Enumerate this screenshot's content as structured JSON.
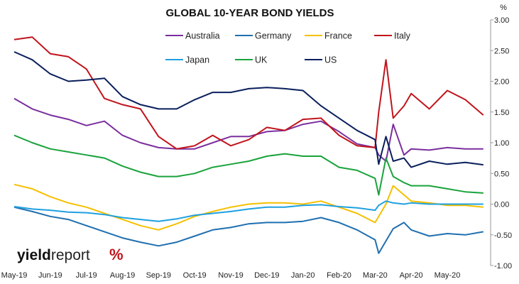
{
  "chart_data": {
    "type": "line",
    "title": "GLOBAL 10-YEAR BOND YIELDS",
    "y_unit": "%",
    "ylim": [
      -1.0,
      3.0
    ],
    "y_ticks": [
      "3.00",
      "2.50",
      "2.00",
      "1.50",
      "1.00",
      "0.50",
      "0.00",
      "-0.50",
      "-1.00"
    ],
    "y_tick_values": [
      3.0,
      2.5,
      2.0,
      1.5,
      1.0,
      0.5,
      0.0,
      -0.5,
      -1.0
    ],
    "x_tick_labels": [
      "May-19",
      "Jun-19",
      "Jul-19",
      "Aug-19",
      "Sep-19",
      "Oct-19",
      "Nov-19",
      "Dec-19",
      "Jan-20",
      "Feb-20",
      "Mar-20",
      "Apr-20",
      "May-20"
    ],
    "x_range_months": [
      0,
      13.2
    ],
    "grid": false,
    "legend_placement": "top, inside plot",
    "series": [
      {
        "name": "Australia",
        "color": "#7B2F9E",
        "x": [
          0,
          0.5,
          1,
          1.5,
          2,
          2.5,
          3,
          3.5,
          4,
          4.5,
          5,
          5.5,
          6,
          6.5,
          7,
          7.5,
          8,
          8.5,
          9,
          9.5,
          10,
          10.1,
          10.3,
          10.5,
          10.8,
          11,
          11.5,
          12,
          12.5,
          13
        ],
        "y": [
          1.72,
          1.55,
          1.45,
          1.38,
          1.28,
          1.35,
          1.12,
          1.0,
          0.92,
          0.9,
          0.9,
          1.0,
          1.1,
          1.1,
          1.18,
          1.2,
          1.3,
          1.35,
          1.18,
          0.98,
          0.92,
          0.8,
          0.7,
          1.3,
          0.8,
          0.9,
          0.88,
          0.92,
          0.9,
          0.9
        ]
      },
      {
        "name": "Germany",
        "color": "#1F6FB0",
        "x": [
          0,
          0.5,
          1,
          1.5,
          2,
          2.5,
          3,
          3.5,
          4,
          4.5,
          5,
          5.5,
          6,
          6.5,
          7,
          7.5,
          8,
          8.5,
          9,
          9.5,
          10,
          10.1,
          10.3,
          10.5,
          10.8,
          11,
          11.5,
          12,
          12.5,
          13
        ],
        "y": [
          -0.05,
          -0.12,
          -0.2,
          -0.25,
          -0.35,
          -0.45,
          -0.55,
          -0.62,
          -0.68,
          -0.62,
          -0.52,
          -0.42,
          -0.38,
          -0.32,
          -0.3,
          -0.3,
          -0.28,
          -0.22,
          -0.3,
          -0.42,
          -0.58,
          -0.8,
          -0.6,
          -0.4,
          -0.3,
          -0.42,
          -0.52,
          -0.48,
          -0.5,
          -0.45
        ]
      },
      {
        "name": "France",
        "color": "#F5C000",
        "x": [
          0,
          0.5,
          1,
          1.5,
          2,
          2.5,
          3,
          3.5,
          4,
          4.5,
          5,
          5.5,
          6,
          6.5,
          7,
          7.5,
          8,
          8.5,
          9,
          9.5,
          10,
          10.1,
          10.3,
          10.5,
          10.8,
          11,
          11.5,
          12,
          12.5,
          13
        ],
        "y": [
          0.32,
          0.25,
          0.12,
          0.02,
          -0.05,
          -0.15,
          -0.25,
          -0.35,
          -0.42,
          -0.32,
          -0.2,
          -0.12,
          -0.05,
          0.0,
          0.02,
          0.02,
          0.0,
          0.05,
          -0.05,
          -0.15,
          -0.3,
          -0.2,
          0.0,
          0.3,
          0.15,
          0.05,
          0.02,
          -0.02,
          -0.02,
          -0.05
        ]
      },
      {
        "name": "Italy",
        "color": "#C0141C",
        "x": [
          0,
          0.5,
          1,
          1.5,
          2,
          2.5,
          3,
          3.5,
          4,
          4.5,
          5,
          5.5,
          6,
          6.5,
          7,
          7.5,
          8,
          8.5,
          9,
          9.5,
          10,
          10.1,
          10.3,
          10.5,
          10.8,
          11,
          11.5,
          12,
          12.5,
          13
        ],
        "y": [
          2.68,
          2.72,
          2.45,
          2.4,
          2.2,
          1.72,
          1.62,
          1.55,
          1.1,
          0.9,
          0.95,
          1.12,
          0.95,
          1.05,
          1.25,
          1.2,
          1.38,
          1.4,
          1.12,
          0.95,
          0.92,
          1.5,
          2.35,
          1.4,
          1.6,
          1.8,
          1.55,
          1.85,
          1.7,
          1.45
        ]
      },
      {
        "name": "Japan",
        "color": "#1FA0E0",
        "x": [
          0,
          0.5,
          1,
          1.5,
          2,
          2.5,
          3,
          3.5,
          4,
          4.5,
          5,
          5.5,
          6,
          6.5,
          7,
          7.5,
          8,
          8.5,
          9,
          9.5,
          10,
          10.1,
          10.3,
          10.5,
          10.8,
          11,
          11.5,
          12,
          12.5,
          13
        ],
        "y": [
          -0.04,
          -0.08,
          -0.1,
          -0.13,
          -0.14,
          -0.17,
          -0.22,
          -0.25,
          -0.28,
          -0.24,
          -0.18,
          -0.15,
          -0.12,
          -0.08,
          -0.05,
          -0.05,
          -0.02,
          -0.01,
          -0.04,
          -0.06,
          -0.1,
          -0.02,
          0.05,
          0.02,
          0.0,
          0.02,
          0.0,
          0.0,
          0.0,
          0.0
        ]
      },
      {
        "name": "UK",
        "color": "#1AA33C",
        "x": [
          0,
          0.5,
          1,
          1.5,
          2,
          2.5,
          3,
          3.5,
          4,
          4.5,
          5,
          5.5,
          6,
          6.5,
          7,
          7.5,
          8,
          8.5,
          9,
          9.5,
          10,
          10.1,
          10.3,
          10.5,
          10.8,
          11,
          11.5,
          12,
          12.5,
          13
        ],
        "y": [
          1.12,
          1.0,
          0.9,
          0.85,
          0.8,
          0.75,
          0.62,
          0.52,
          0.45,
          0.45,
          0.5,
          0.6,
          0.65,
          0.7,
          0.78,
          0.82,
          0.78,
          0.78,
          0.6,
          0.55,
          0.42,
          0.15,
          0.75,
          0.45,
          0.35,
          0.3,
          0.3,
          0.25,
          0.2,
          0.18
        ]
      },
      {
        "name": "US",
        "color": "#0A1F5C",
        "x": [
          0,
          0.5,
          1,
          1.5,
          2,
          2.5,
          3,
          3.5,
          4,
          4.5,
          5,
          5.5,
          6,
          6.5,
          7,
          7.5,
          8,
          8.5,
          9,
          9.5,
          10,
          10.1,
          10.3,
          10.5,
          10.8,
          11,
          11.5,
          12,
          12.5,
          13
        ],
        "y": [
          2.48,
          2.35,
          2.12,
          2.0,
          2.02,
          2.05,
          1.75,
          1.62,
          1.55,
          1.55,
          1.7,
          1.82,
          1.82,
          1.88,
          1.9,
          1.88,
          1.85,
          1.6,
          1.4,
          1.2,
          1.05,
          0.65,
          1.1,
          0.7,
          0.75,
          0.6,
          0.7,
          0.65,
          0.68,
          0.64
        ]
      }
    ]
  },
  "branding": {
    "logo_text_bold": "yield",
    "logo_text_light": "report",
    "logo_symbol": "%"
  },
  "colors": {
    "background": "#ffffff",
    "axis": "#999999"
  }
}
